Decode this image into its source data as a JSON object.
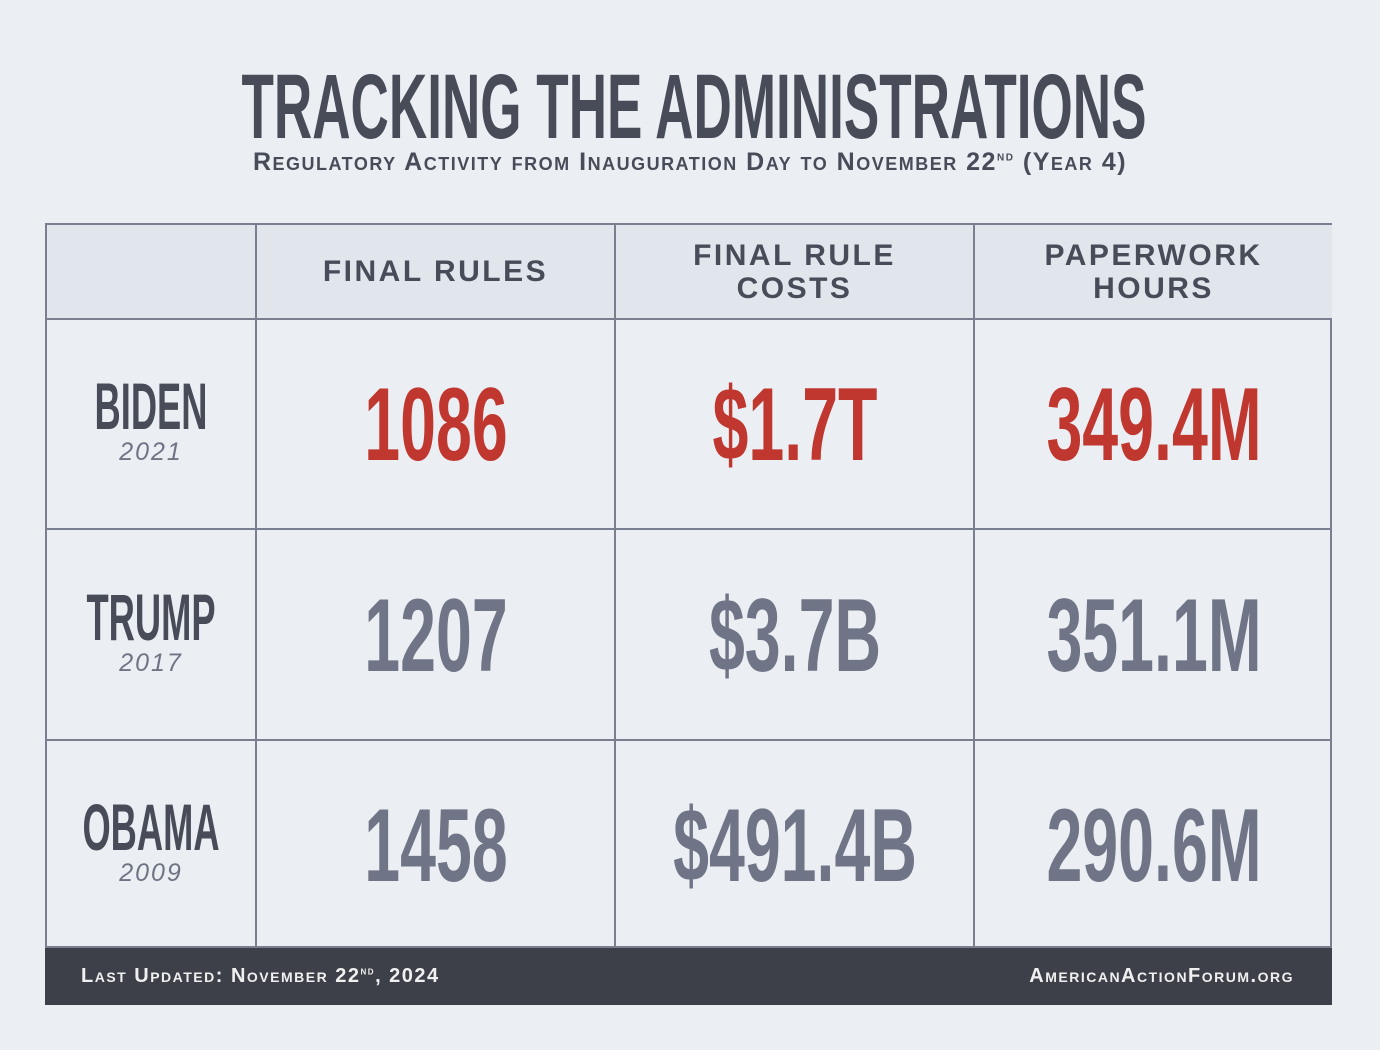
{
  "title": "TRACKING THE ADMINISTRATIONS",
  "subtitle": {
    "text": "Regulatory Activity from Inauguration Day to November 22",
    "sup": "nd",
    "suffix": " (Year 4)"
  },
  "colors": {
    "highlight": "#c0372f",
    "normal": "#6f7586",
    "text": "#484b58",
    "footer_bg": "#3d4049"
  },
  "chart_data": {
    "type": "table",
    "columns": [
      "",
      "FINAL RULES",
      "FINAL RULE COSTS",
      "PAPERWORK HOURS"
    ],
    "rows": [
      {
        "name": "BIDEN",
        "year": "2021",
        "values": [
          "1086",
          "$1.7T",
          "349.4M"
        ],
        "highlight": true
      },
      {
        "name": "TRUMP",
        "year": "2017",
        "values": [
          "1207",
          "$3.7B",
          "351.1M"
        ],
        "highlight": false
      },
      {
        "name": "OBAMA",
        "year": "2009",
        "values": [
          "1458",
          "$491.4B",
          "290.6M"
        ],
        "highlight": false
      }
    ]
  },
  "footer": {
    "updated": "Last Updated: November 22",
    "updated_sup": "nd",
    "updated_suffix": ", 2024",
    "site": "AmericanActionForum.org"
  }
}
